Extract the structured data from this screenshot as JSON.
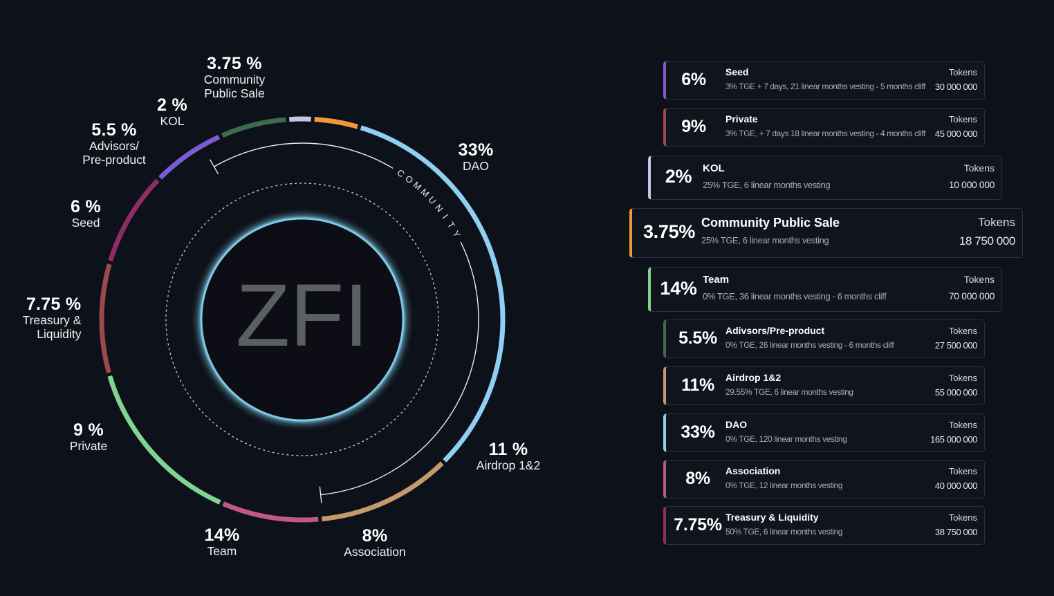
{
  "chart_data": {
    "type": "pie",
    "style": "donut",
    "center_label": "ZFI",
    "bracket_label": "COMMUNITY",
    "slices": [
      {
        "pct_label": "33%",
        "name": "DAO",
        "value": 33,
        "color": "#8fd0f2"
      },
      {
        "pct_label": "11 %",
        "name": "Airdrop 1&2",
        "value": 11,
        "color": "#c49a6c"
      },
      {
        "pct_label": "8%",
        "name": "Association",
        "value": 8,
        "color": "#c2558b"
      },
      {
        "pct_label": "14%",
        "name": "Team",
        "value": 14,
        "color": "#80d490"
      },
      {
        "pct_label": "9 %",
        "name": "Private",
        "value": 9,
        "color": "#9a4a4a"
      },
      {
        "pct_label": "7.75 %",
        "name": "Treasury & Liquidity",
        "name_lines": [
          "Treasury &",
          "Liquidity"
        ],
        "value": 7.75,
        "color": "#8c2e64"
      },
      {
        "pct_label": "6 %",
        "name": "Seed",
        "value": 6,
        "color": "#7d5bd6"
      },
      {
        "pct_label": "5.5 %",
        "name": "Advisors/ Pre-product",
        "name_lines": [
          "Advisors/",
          "Pre-product"
        ],
        "value": 5.5,
        "color": "#3f6a4b"
      },
      {
        "pct_label": "2 %",
        "name": "KOL",
        "value": 2,
        "color": "#c3c6e8"
      },
      {
        "pct_label": "3.75 %",
        "name": "Community Public Sale",
        "name_lines": [
          "Community",
          "Public Sale"
        ],
        "value": 3.75,
        "color": "#f09836"
      }
    ]
  },
  "allocations": [
    {
      "pct": "6%",
      "name": "Seed",
      "desc": "3% TGE + 7 days, 21 linear months vesting - 5 months cliff",
      "tokens_label": "Tokens",
      "tokens": "30 000 000",
      "color": "#7d5bd6"
    },
    {
      "pct": "9%",
      "name": "Private",
      "desc": "3% TGE, + 7 days  18 linear months vesting - 4 months cliff",
      "tokens_label": "Tokens",
      "tokens": "45 000 000",
      "color": "#9a4a4a"
    },
    {
      "pct": "2%",
      "name": "KOL",
      "desc": "25% TGE, 6 linear months vesting",
      "tokens_label": "Tokens",
      "tokens": "10 000 000",
      "color": "#c3c6e8"
    },
    {
      "pct": "3.75%",
      "name": "Community Public Sale",
      "desc": "25% TGE, 6 linear months vesting",
      "tokens_label": "Tokens",
      "tokens": "18 750 000",
      "color": "#f09836"
    },
    {
      "pct": "14%",
      "name": "Team",
      "desc": "0% TGE, 36 linear months vesting - 6 months cliff",
      "tokens_label": "Tokens",
      "tokens": "70 000 000",
      "color": "#80d490"
    },
    {
      "pct": "5.5%",
      "name": "Adivsors/Pre-product",
      "desc": "0% TGE, 26 linear months vesting - 6 months cliff",
      "tokens_label": "Tokens",
      "tokens": "27 500 000",
      "color": "#3f6a4b"
    },
    {
      "pct": "11%",
      "name": "Airdrop 1&2",
      "desc": "29.55% TGE, 6 linear months vesting",
      "tokens_label": "Tokens",
      "tokens": "55 000 000",
      "color": "#c49a6c"
    },
    {
      "pct": "33%",
      "name": "DAO",
      "desc": "0% TGE, 120 linear months vesting",
      "tokens_label": "Tokens",
      "tokens": "165 000 000",
      "color": "#8fd0f2"
    },
    {
      "pct": "8%",
      "name": "Association",
      "desc": "0% TGE, 12 linear months vesting",
      "tokens_label": "Tokens",
      "tokens": "40 000 000",
      "color": "#c2558b"
    },
    {
      "pct": "7.75%",
      "name": "Treasury & Liquidity",
      "desc": "50% TGE, 6 linear months vesting",
      "tokens_label": "Tokens",
      "tokens": "38 750 000",
      "color": "#8c2e64"
    }
  ]
}
